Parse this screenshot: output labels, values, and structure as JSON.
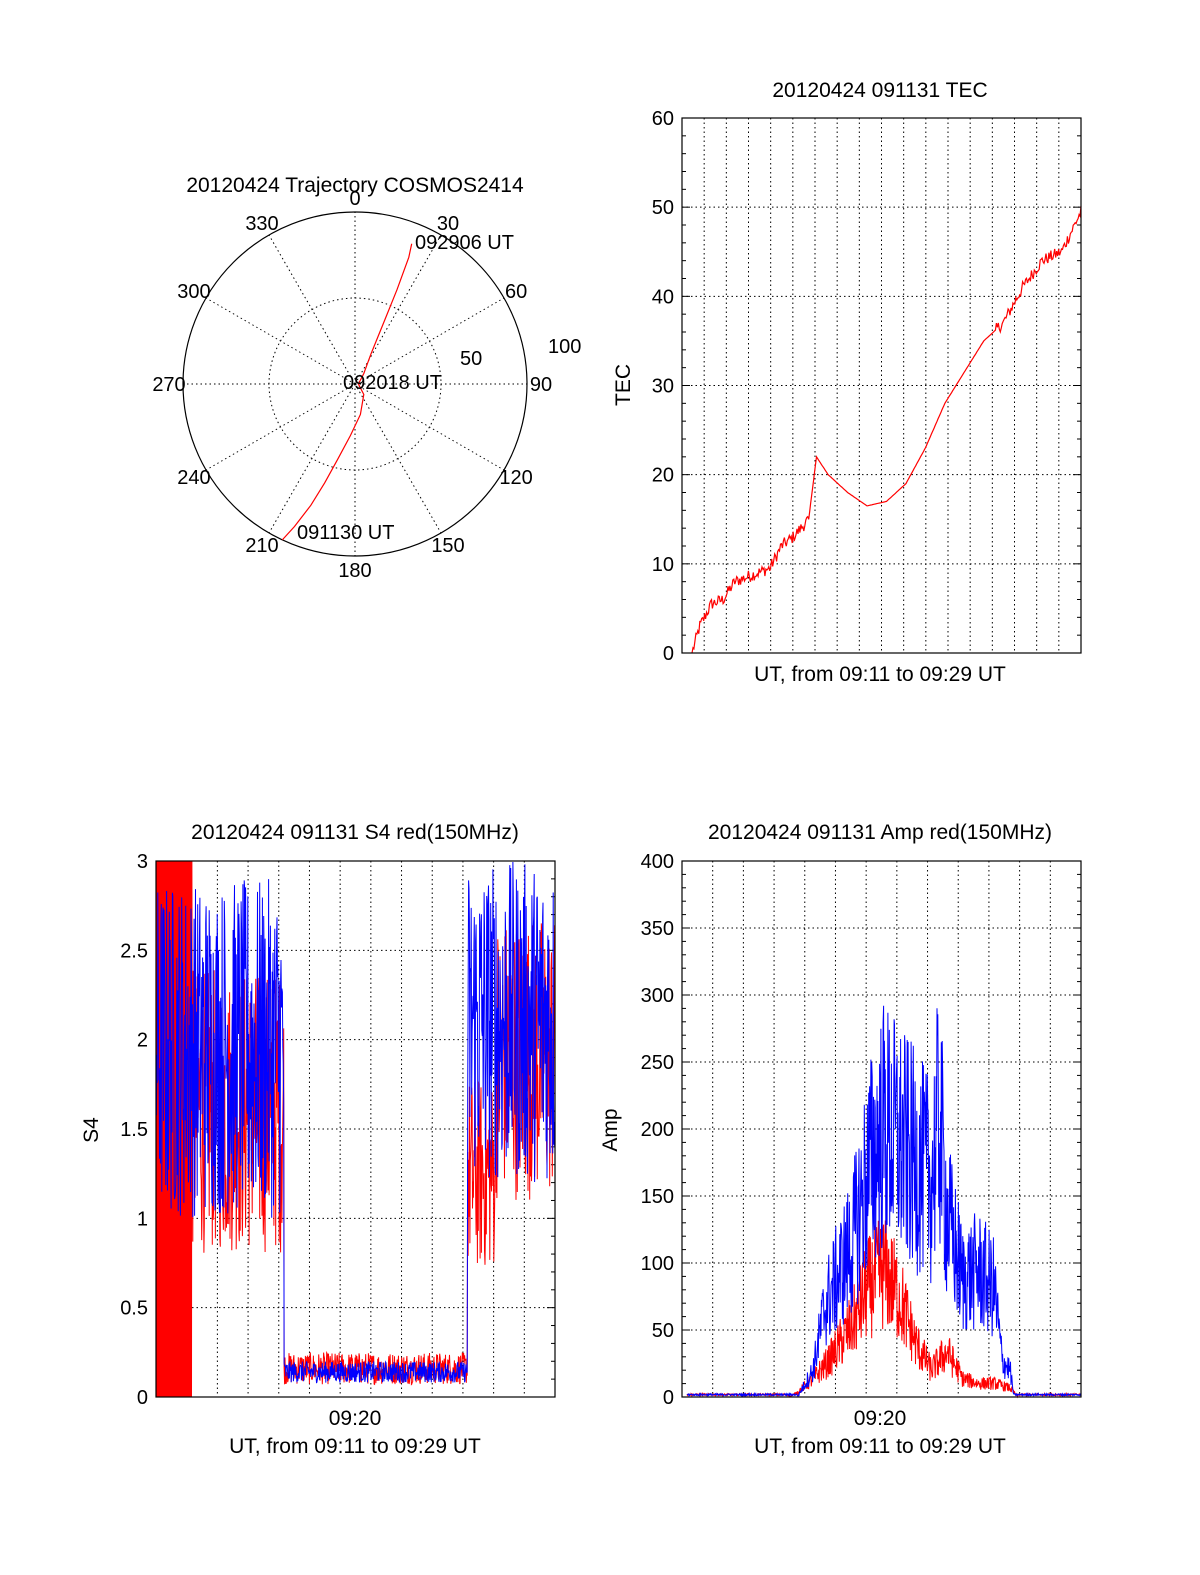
{
  "chart_data": [
    {
      "id": "polar",
      "type": "scatter",
      "title": "20120424 Trajectory COSMOS2414",
      "projection": "polar",
      "azimuth_labels": [
        "0",
        "30",
        "60",
        "90",
        "120",
        "150",
        "180",
        "210",
        "240",
        "270",
        "300",
        "330"
      ],
      "radial_labels": [
        "50",
        "100"
      ],
      "radial_ticks": [
        50,
        100
      ],
      "annotations": [
        "092906 UT",
        "092018 UT",
        "091130 UT"
      ],
      "series": [
        {
          "color": "#ff0000",
          "points": [
            [
              205,
              100
            ],
            [
              203,
              90
            ],
            [
              200,
              75
            ],
            [
              197,
              60
            ],
            [
              193,
              45
            ],
            [
              185,
              30
            ],
            [
              170,
              18
            ],
            [
              140,
              8
            ],
            [
              90,
              2
            ],
            [
              40,
              8
            ],
            [
              28,
              20
            ],
            [
              25,
              40
            ],
            [
              24,
              60
            ],
            [
              23,
              80
            ],
            [
              22,
              88
            ]
          ]
        }
      ]
    },
    {
      "id": "tec",
      "type": "line",
      "title": "20120424 091131 TEC",
      "xlabel": "UT, from 09:11 to 09:29 UT",
      "ylabel": "TEC",
      "ylim": [
        0,
        60
      ],
      "yticks": [
        "0",
        "10",
        "20",
        "30",
        "40",
        "50",
        "60"
      ],
      "series": [
        {
          "color": "#ff0000",
          "x": [
            0,
            0.02,
            0.05,
            0.08,
            0.11,
            0.14,
            0.17,
            0.2,
            0.23,
            0.26,
            0.28,
            0.3,
            0.32,
            0.35,
            0.4,
            0.45,
            0.5,
            0.55,
            0.6,
            0.65,
            0.7,
            0.75,
            0.8,
            0.85,
            0.9,
            0.95,
            1.0
          ],
          "y": [
            0,
            3,
            5.5,
            6,
            8,
            8.5,
            9,
            9.5,
            12,
            13,
            14,
            15,
            22,
            20,
            18,
            16.5,
            17,
            19,
            23,
            28,
            31.5,
            35,
            37,
            41,
            44,
            45,
            49.5
          ]
        }
      ]
    },
    {
      "id": "s4",
      "type": "line",
      "title": "20120424 091131 S4 red(150MHz)",
      "xlabel": "UT, from 09:11 to 09:29 UT",
      "ylabel": "S4",
      "ylim": [
        0,
        3
      ],
      "yticks": [
        "0",
        "0.5",
        "1",
        "1.5",
        "2",
        "2.5",
        "3"
      ],
      "xtick_label": "09:20",
      "series": [
        {
          "color": "#ff0000",
          "segments": [
            {
              "from": 0.0,
              "to": 0.09,
              "lo": 0.0,
              "hi": 3.0
            },
            {
              "from": 0.09,
              "to": 0.32,
              "lo": 0.8,
              "hi": 2.4
            },
            {
              "from": 0.32,
              "to": 0.78,
              "lo": 0.07,
              "hi": 0.25
            },
            {
              "from": 0.78,
              "to": 0.85,
              "lo": 0.7,
              "hi": 1.8
            },
            {
              "from": 0.85,
              "to": 1.0,
              "lo": 1.1,
              "hi": 2.7
            }
          ]
        },
        {
          "color": "#0000ff",
          "segments": [
            {
              "from": 0.0,
              "to": 0.32,
              "lo": 1.0,
              "hi": 2.9
            },
            {
              "from": 0.32,
              "to": 0.78,
              "lo": 0.08,
              "hi": 0.2
            },
            {
              "from": 0.78,
              "to": 1.0,
              "lo": 1.2,
              "hi": 3.0
            }
          ]
        }
      ]
    },
    {
      "id": "amp",
      "type": "line",
      "title": "20120424 091131 Amp red(150MHz)",
      "xlabel": "UT, from 09:11 to 09:29 UT",
      "ylabel": "Amp",
      "ylim": [
        0,
        400
      ],
      "yticks": [
        "0",
        "50",
        "100",
        "150",
        "200",
        "250",
        "300",
        "350",
        "400"
      ],
      "xtick_label": "09:20",
      "series": [
        {
          "color": "#ff0000",
          "envelope": [
            [
              0,
              0
            ],
            [
              0.26,
              0
            ],
            [
              0.28,
              5
            ],
            [
              0.32,
              20
            ],
            [
              0.36,
              40
            ],
            [
              0.42,
              80
            ],
            [
              0.46,
              120
            ],
            [
              0.5,
              140
            ],
            [
              0.54,
              110
            ],
            [
              0.58,
              60
            ],
            [
              0.62,
              30
            ],
            [
              0.66,
              50
            ],
            [
              0.7,
              20
            ],
            [
              0.74,
              15
            ],
            [
              0.78,
              15
            ],
            [
              0.82,
              10
            ],
            [
              0.84,
              0
            ],
            [
              1.0,
              0
            ]
          ]
        },
        {
          "color": "#0000ff",
          "envelope": [
            [
              0,
              0
            ],
            [
              0.28,
              0
            ],
            [
              0.32,
              30
            ],
            [
              0.35,
              100
            ],
            [
              0.38,
              130
            ],
            [
              0.42,
              170
            ],
            [
              0.46,
              250
            ],
            [
              0.5,
              300
            ],
            [
              0.54,
              280
            ],
            [
              0.58,
              260
            ],
            [
              0.62,
              240
            ],
            [
              0.64,
              310
            ],
            [
              0.66,
              200
            ],
            [
              0.7,
              130
            ],
            [
              0.74,
              140
            ],
            [
              0.78,
              120
            ],
            [
              0.8,
              40
            ],
            [
              0.82,
              30
            ],
            [
              0.83,
              0
            ],
            [
              1.0,
              0
            ]
          ]
        }
      ]
    }
  ]
}
